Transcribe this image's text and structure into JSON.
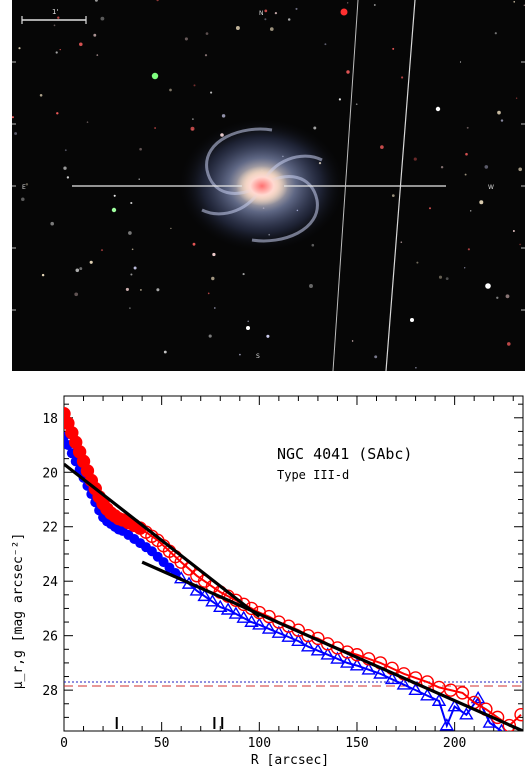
{
  "image": {
    "scale_bar_label": "1'",
    "compass_north": "N",
    "compass_east": "E",
    "compass_west": "W",
    "compass_south": "S"
  },
  "plot": {
    "title": "NGC 4041 (SAbc)",
    "subtitle": "Type III-d",
    "xlabel": "R [arcsec]",
    "ylabel": "μ_r,g [mag arcsec⁻²]"
  },
  "colors": {
    "r_band": "#ff0000",
    "g_band": "#0000ff",
    "fit": "#000000",
    "limit_r_line": "#d03030",
    "limit_g_line": "#2020c0"
  },
  "chart_data": {
    "type": "scatter",
    "xlabel": "R [arcsec]",
    "ylabel": "μ_r,g [mag arcsec⁻²]",
    "xlim": [
      0,
      235
    ],
    "ylim": [
      29.5,
      17.2
    ],
    "y_inverted": true,
    "x_ticks": [
      0,
      50,
      100,
      150,
      200
    ],
    "y_ticks": [
      18,
      20,
      22,
      24,
      26,
      28
    ],
    "annotations": [
      "NGC 4041 (SAbc)",
      "Type III-d"
    ],
    "series": [
      {
        "name": "r",
        "marker": "circle",
        "color": "#ff0000",
        "x": [
          0,
          2,
          4,
          6,
          8,
          10,
          12,
          14,
          16,
          18,
          20,
          22,
          24,
          26,
          28,
          30,
          33,
          36,
          39,
          42,
          45,
          48,
          51,
          54,
          57,
          60,
          64,
          68,
          72,
          76,
          80,
          84,
          88,
          92,
          96,
          100,
          105,
          110,
          115,
          120,
          125,
          130,
          135,
          140,
          145,
          150,
          156,
          162,
          168,
          174,
          180,
          186,
          192,
          198,
          204,
          210,
          216,
          222,
          228,
          234
        ],
        "y": [
          17.85,
          18.2,
          18.55,
          18.9,
          19.25,
          19.6,
          19.95,
          20.3,
          20.6,
          20.9,
          21.15,
          21.35,
          21.5,
          21.6,
          21.7,
          21.75,
          21.85,
          21.95,
          22.05,
          22.2,
          22.35,
          22.5,
          22.7,
          22.9,
          23.1,
          23.3,
          23.55,
          23.8,
          24.0,
          24.2,
          24.4,
          24.55,
          24.7,
          24.85,
          25.0,
          25.15,
          25.3,
          25.5,
          25.65,
          25.8,
          26.0,
          26.1,
          26.3,
          26.45,
          26.6,
          26.7,
          26.85,
          27.0,
          27.2,
          27.4,
          27.55,
          27.7,
          27.9,
          28.0,
          28.1,
          28.45,
          28.7,
          29.0,
          29.3,
          28.9
        ]
      },
      {
        "name": "g",
        "marker": "triangle",
        "color": "#0000ff",
        "x": [
          0,
          2,
          4,
          6,
          8,
          10,
          12,
          14,
          16,
          18,
          20,
          22,
          24,
          26,
          28,
          30,
          33,
          36,
          39,
          42,
          45,
          48,
          51,
          54,
          57,
          60,
          64,
          68,
          72,
          76,
          80,
          84,
          88,
          92,
          96,
          100,
          105,
          110,
          115,
          120,
          125,
          130,
          135,
          140,
          145,
          150,
          156,
          162,
          168,
          174,
          180,
          186,
          192,
          196,
          200,
          206,
          212,
          218,
          224
        ],
        "y": [
          18.7,
          19.0,
          19.3,
          19.6,
          19.9,
          20.2,
          20.5,
          20.8,
          21.1,
          21.4,
          21.65,
          21.8,
          21.9,
          22.0,
          22.1,
          22.15,
          22.3,
          22.45,
          22.6,
          22.75,
          22.9,
          23.1,
          23.3,
          23.5,
          23.7,
          23.9,
          24.1,
          24.35,
          24.55,
          24.75,
          24.95,
          25.05,
          25.2,
          25.35,
          25.5,
          25.6,
          25.75,
          25.9,
          26.05,
          26.2,
          26.4,
          26.55,
          26.7,
          26.85,
          27.0,
          27.1,
          27.25,
          27.4,
          27.6,
          27.8,
          28.0,
          28.2,
          28.4,
          29.3,
          28.6,
          28.9,
          28.3,
          29.2,
          29.5
        ]
      }
    ],
    "fits": [
      {
        "name": "inner disk fit",
        "x": [
          0,
          100
        ],
        "y": [
          19.7,
          25.3
        ]
      },
      {
        "name": "outer disk fit",
        "x": [
          40,
          235
        ],
        "y": [
          23.3,
          29.5
        ]
      }
    ],
    "limit_lines": [
      {
        "name": "r limit",
        "y": 27.85,
        "style": "dashed",
        "color": "#d03030"
      },
      {
        "name": "g limit",
        "y": 27.7,
        "style": "dotted",
        "color": "#2020c0"
      }
    ],
    "break_markers_x": [
      27,
      77,
      81
    ],
    "grid": false,
    "legend": "none"
  }
}
